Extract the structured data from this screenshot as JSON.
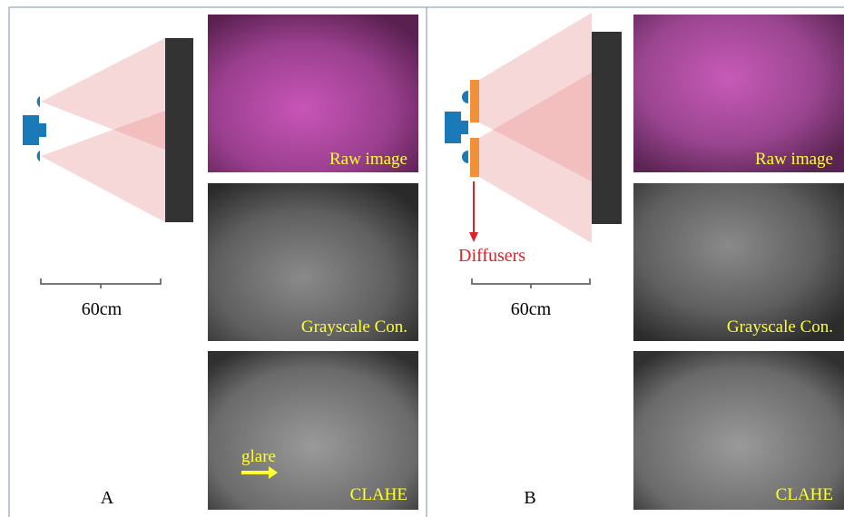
{
  "panels": [
    {
      "label": "A",
      "scale": "60cm",
      "images": [
        "Raw image",
        "Grayscale Con.",
        "CLAHE"
      ],
      "annotation": "glare"
    },
    {
      "label": "B",
      "scale": "60cm",
      "images": [
        "Raw image",
        "Grayscale Con.",
        "CLAHE"
      ],
      "annotation": "Diffusers"
    }
  ]
}
